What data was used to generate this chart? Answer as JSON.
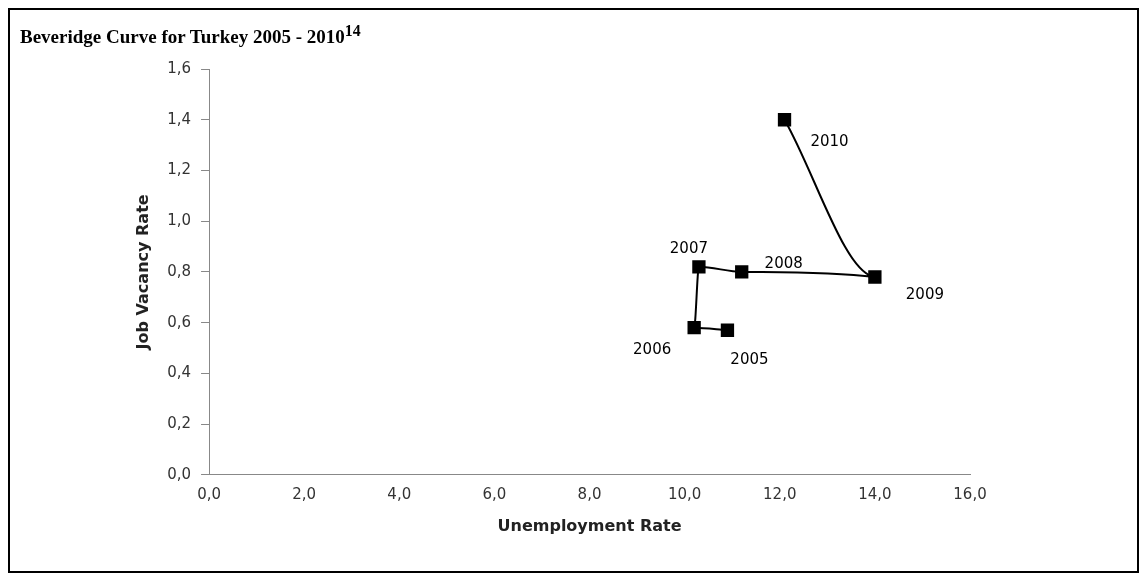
{
  "chart_data": {
    "type": "line",
    "title": "Beveridge Curve for Turkey 2005 - 2010$^{14}$",
    "xlabel": "Unemployment Rate",
    "ylabel": "Job Vacancy Rate",
    "x": [
      10.9,
      10.2,
      10.3,
      11.2,
      14.0,
      12.1
    ],
    "series": [
      {
        "color": "#000000",
        "values": [
          0.57,
          0.58,
          0.82,
          0.8,
          0.78,
          1.4
        ]
      }
    ],
    "xlim": [
      0,
      16
    ],
    "xticks": [
      {
        "value": 0,
        "label": "0,0"
      },
      {
        "value": 2,
        "label": "2,0"
      },
      {
        "value": 4,
        "label": "4,0"
      },
      {
        "value": 6,
        "label": "6,0"
      },
      {
        "value": 8,
        "label": "8,0"
      },
      {
        "value": 10,
        "label": "10,0"
      },
      {
        "value": 12,
        "label": "12,0"
      },
      {
        "value": 14,
        "label": "14,0"
      },
      {
        "value": 16,
        "label": "16,0"
      }
    ],
    "ylim": [
      0,
      1.6
    ],
    "yticks": [
      {
        "value": 0,
        "label": "0,0"
      },
      {
        "value": 0.2,
        "label": "0,2"
      },
      {
        "value": 0.4,
        "label": "0,4"
      },
      {
        "value": 0.6,
        "label": "0,6"
      },
      {
        "value": 0.8,
        "label": "0,8"
      },
      {
        "value": 1.0,
        "label": "1,0"
      },
      {
        "value": 1.2,
        "label": "1,2"
      },
      {
        "value": 1.4,
        "label": "1,4"
      },
      {
        "value": 1.6,
        "label": "1,6"
      }
    ],
    "annotations": [
      {
        "text": "2005",
        "x": 10.9,
        "y": 0.57
      },
      {
        "text": "2006",
        "x": 10.2,
        "y": 0.58
      },
      {
        "text": "2007",
        "x": 10.3,
        "y": 0.82
      },
      {
        "text": "2008",
        "x": 11.2,
        "y": 0.8
      },
      {
        "text": "2009",
        "x": 14.0,
        "y": 0.78
      },
      {
        "text": "2010",
        "x": 12.1,
        "y": 1.4
      }
    ],
    "grid": false,
    "legend": false,
    "marker": "square",
    "line_style": "solid"
  }
}
